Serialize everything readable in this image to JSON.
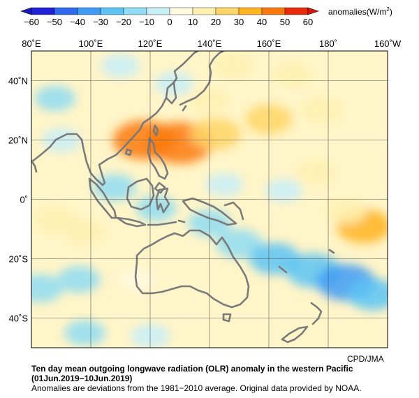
{
  "colorbar": {
    "ticks": [
      "−60",
      "−50",
      "−40",
      "−30",
      "−20",
      "−10",
      "0",
      "10",
      "20",
      "30",
      "40",
      "50",
      "60"
    ],
    "colors": [
      "#2020d8",
      "#2f6bee",
      "#3f9cf6",
      "#5cc3f5",
      "#8fdcf2",
      "#c8eef8",
      "#fff9e0",
      "#fff0b0",
      "#ffd566",
      "#ffb320",
      "#fb7a10",
      "#ea2a0a"
    ],
    "label_prefix": "anomalies(W/m",
    "label_sup": "2",
    "label_suffix": ")"
  },
  "map": {
    "lon_labels": [
      "80˚E",
      "100˚E",
      "120˚E",
      "140˚E",
      "160˚E",
      "180˚",
      "160˚W"
    ],
    "lat_labels": [
      "40˚N",
      "20˚N",
      "0˚",
      "20˚S",
      "40˚S"
    ],
    "land_color": "#7a7a7a",
    "anomaly_fields": [
      {
        "lon": 130,
        "lat": 19,
        "value": 45
      },
      {
        "lon": 118,
        "lat": 20,
        "value": 40
      },
      {
        "lon": 142,
        "lat": 22,
        "value": 25
      },
      {
        "lon": 160,
        "lat": 27,
        "value": 20
      },
      {
        "lon": 178,
        "lat": 30,
        "value": 15
      },
      {
        "lon": 140,
        "lat": 33,
        "value": 10
      },
      {
        "lon": 176,
        "lat": 9,
        "value": 12
      },
      {
        "lon": 88,
        "lat": -7,
        "value": 15
      },
      {
        "lon": 98,
        "lat": -11,
        "value": 12
      },
      {
        "lon": 192,
        "lat": -9,
        "value": 30
      },
      {
        "lon": 186,
        "lat": -4,
        "value": 12
      },
      {
        "lon": 116,
        "lat": -27,
        "value": 8
      },
      {
        "lon": 148,
        "lat": 45,
        "value": 12
      },
      {
        "lon": 168,
        "lat": 42,
        "value": 10
      },
      {
        "lon": 90,
        "lat": 20,
        "value": -10
      },
      {
        "lon": 108,
        "lat": 4,
        "value": -15
      },
      {
        "lon": 122,
        "lat": -3,
        "value": -12
      },
      {
        "lon": 140,
        "lat": -8,
        "value": -15
      },
      {
        "lon": 150,
        "lat": -15,
        "value": -20
      },
      {
        "lon": 162,
        "lat": -20,
        "value": -25
      },
      {
        "lon": 175,
        "lat": -24,
        "value": -30
      },
      {
        "lon": 186,
        "lat": -28,
        "value": -35
      },
      {
        "lon": 195,
        "lat": -32,
        "value": -25
      },
      {
        "lon": 96,
        "lat": -27,
        "value": -15
      },
      {
        "lon": 83,
        "lat": -30,
        "value": -18
      },
      {
        "lon": 98,
        "lat": -45,
        "value": -12
      },
      {
        "lon": 120,
        "lat": -46,
        "value": -10
      },
      {
        "lon": 110,
        "lat": 45,
        "value": -10
      },
      {
        "lon": 88,
        "lat": 34,
        "value": -12
      },
      {
        "lon": 128,
        "lat": 39,
        "value": -10
      },
      {
        "lon": 145,
        "lat": 5,
        "value": -8
      },
      {
        "lon": 165,
        "lat": 3,
        "value": -8
      }
    ]
  },
  "credit": "CPD/JMA",
  "caption": {
    "title": "Ten day mean outgoing longwave radiation (OLR) anomaly in the western Pacific",
    "period": "(01Jun.2019−10Jun.2019)",
    "note": "Anomalies are deviations from the 1981−2010 average. Original data provided by NOAA."
  }
}
